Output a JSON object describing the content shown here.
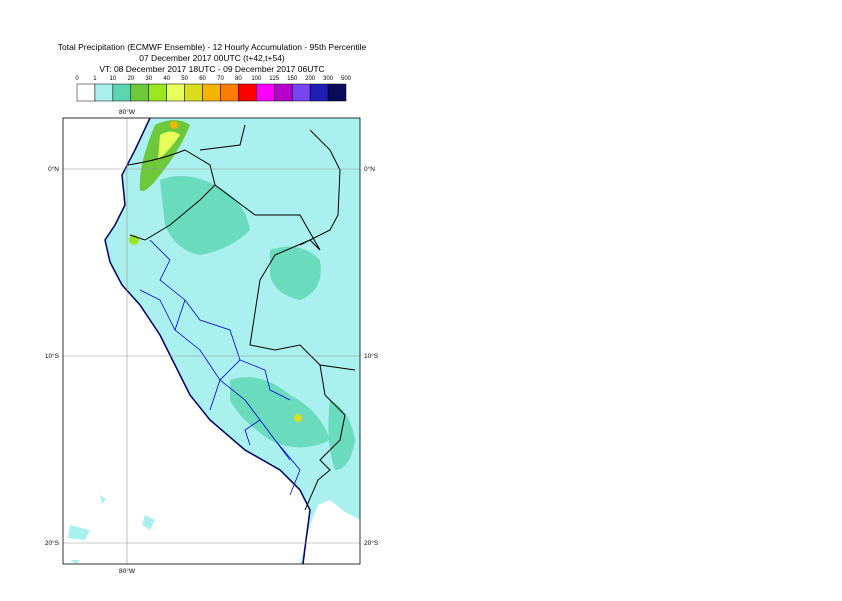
{
  "header": {
    "line1": "Total Precipitation (ECMWF Ensemble) - 12 Hourly Accumulation - 95th Percentile",
    "line2": "07 December 2017 00UTC (t+42,t+54)",
    "line3": "VT: 08 December 2017 18UTC - 09 December 2017 06UTC"
  },
  "legend": {
    "labels": [
      0,
      1,
      10,
      20,
      30,
      40,
      50,
      60,
      70,
      80,
      100,
      125,
      150,
      200,
      300,
      500
    ],
    "colors": [
      "#ffffff",
      "#aaf0ee",
      "#5ad6b0",
      "#6ec83c",
      "#9be61e",
      "#e6ff5a",
      "#dcdc1e",
      "#f5b400",
      "#ff7d00",
      "#ff0000",
      "#ff00ff",
      "#b400c8",
      "#7846f0",
      "#1e1eb4",
      "#0a0a5a"
    ]
  },
  "map": {
    "top_lon": "80°W",
    "bottom_lon": "80°W",
    "lat_0_left": "0°N",
    "lat_0_right": "0°N",
    "lat_10_left": "10°S",
    "lat_10_right": "10°S",
    "lat_20_left": "20°S",
    "lat_20_right": "20°S"
  }
}
